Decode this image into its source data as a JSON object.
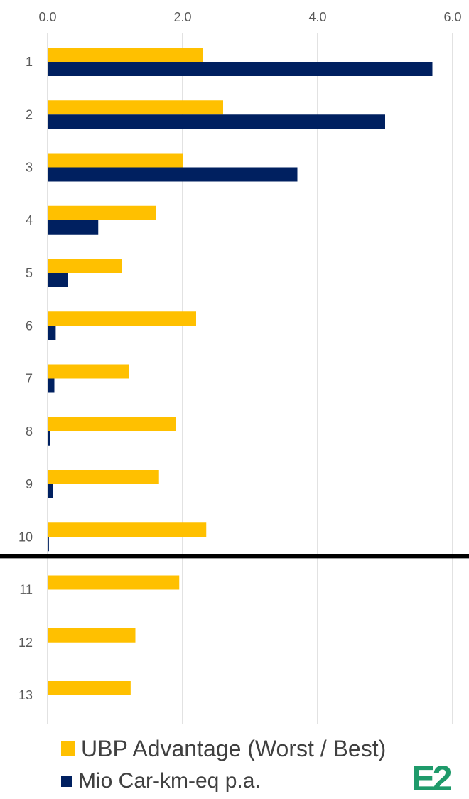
{
  "chart_data": {
    "type": "bar",
    "orientation": "horizontal",
    "categories": [
      "1",
      "2",
      "3",
      "4",
      "5",
      "6",
      "7",
      "8",
      "9",
      "10",
      "11",
      "12",
      "13"
    ],
    "series": [
      {
        "name": "UBP Advantage (Worst / Best)",
        "color": "#FFC000",
        "values": [
          2.3,
          2.6,
          2.0,
          1.6,
          1.1,
          2.2,
          1.2,
          1.9,
          1.65,
          2.35,
          1.95,
          1.3,
          1.23
        ]
      },
      {
        "name": "Mio Car-km-eq p.a.",
        "color": "#002060",
        "values": [
          5.7,
          5.0,
          3.7,
          0.75,
          0.3,
          0.12,
          0.1,
          0.04,
          0.08,
          0.02,
          null,
          null,
          null
        ]
      }
    ],
    "x_ticks": [
      "0.0",
      "2.0",
      "4.0",
      "6.0"
    ],
    "xlim": [
      0,
      6.0
    ],
    "x_axis_position": "top",
    "grid": "vertical",
    "legend_position": "bottom",
    "separator_after_category": "10"
  },
  "logo": {
    "text": "E2",
    "color": "#1E9A6A",
    "accent": "#2E6FB7"
  }
}
